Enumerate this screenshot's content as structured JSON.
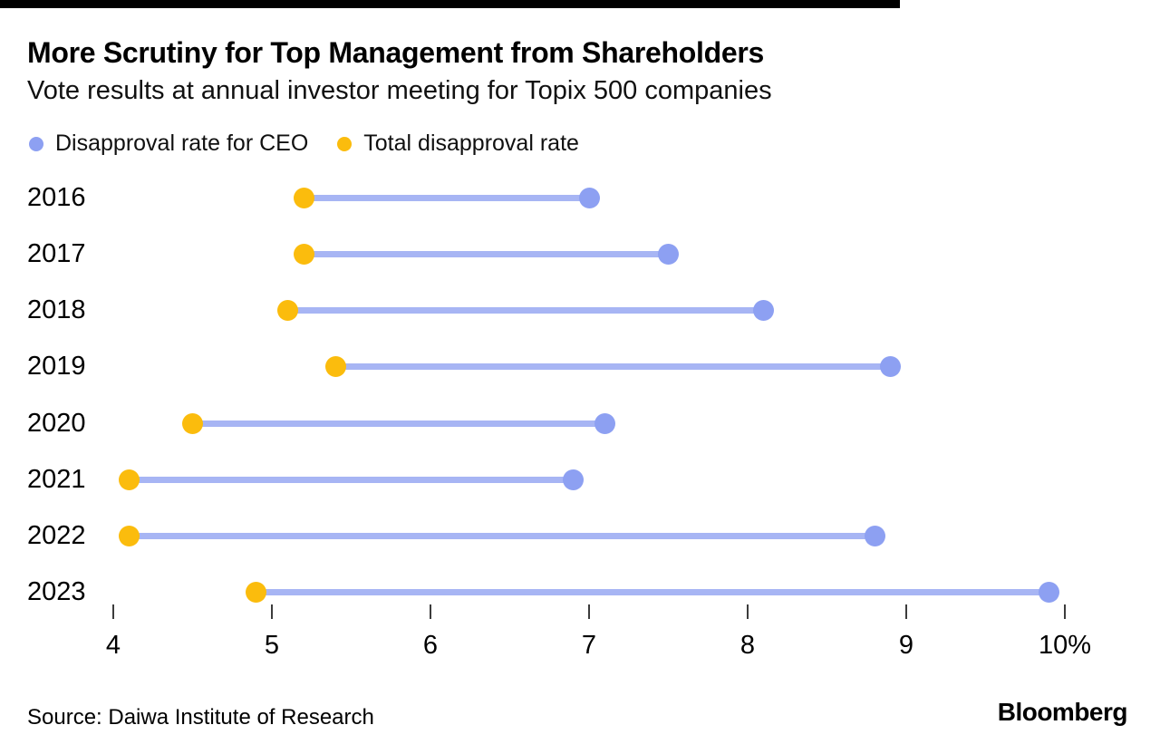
{
  "page": {
    "title": "More Scrutiny for Top Management from Shareholders",
    "subtitle": "Vote results at annual investor meeting for Topix 500 companies",
    "source": "Source: Daiwa Institute of Research",
    "brand": "Bloomberg"
  },
  "legend": [
    {
      "label": "Disapproval rate for CEO",
      "color": "#8DA0F2"
    },
    {
      "label": "Total disapproval rate",
      "color": "#FBBC0D"
    }
  ],
  "colors": {
    "ceo_dot": "#8DA0F2",
    "total_dot": "#FBBC0D",
    "connector": "#A7B5F4",
    "top_bar": "#000000"
  },
  "chart_data": {
    "type": "dumbbell",
    "title": "More Scrutiny for Top Management from Shareholders",
    "subtitle": "Vote results at annual investor meeting for Topix 500 companies",
    "categories": [
      "2016",
      "2017",
      "2018",
      "2019",
      "2020",
      "2021",
      "2022",
      "2023"
    ],
    "series": [
      {
        "name": "Disapproval rate for CEO",
        "values": [
          7.0,
          7.5,
          8.1,
          8.9,
          7.1,
          6.9,
          8.8,
          9.9
        ]
      },
      {
        "name": "Total disapproval rate",
        "values": [
          5.2,
          5.2,
          5.1,
          5.4,
          4.5,
          4.1,
          4.1,
          4.9
        ]
      }
    ],
    "unit": "%",
    "xlim": [
      4,
      10
    ],
    "x_ticks": [
      {
        "value": 4,
        "label": "4"
      },
      {
        "value": 5,
        "label": "5"
      },
      {
        "value": 6,
        "label": "6"
      },
      {
        "value": 7,
        "label": "7"
      },
      {
        "value": 8,
        "label": "8"
      },
      {
        "value": 9,
        "label": "9"
      },
      {
        "value": 10,
        "label": "10%"
      }
    ],
    "grid": false,
    "legend_position": "top-left"
  }
}
